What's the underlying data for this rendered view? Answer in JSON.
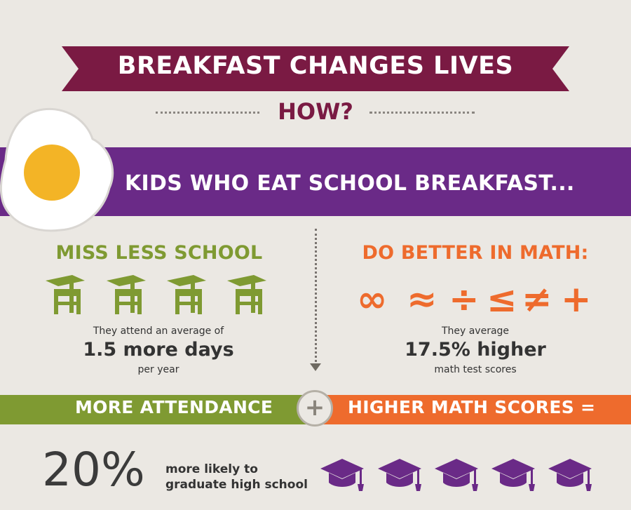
{
  "header": {
    "title": "BREAKFAST CHANGES LIVES",
    "subtitle": "HOW?"
  },
  "banner": {
    "text": "KIDS WHO EAT SCHOOL BREAKFAST..."
  },
  "left": {
    "title": "MISS LESS SCHOOL",
    "line1": "They attend an average of",
    "highlight": "1.5 more days",
    "line2": "per year",
    "icon_name": "school-desk-icon",
    "icon_count": 4
  },
  "right": {
    "title": "DO BETTER IN MATH:",
    "symbols": [
      "∞",
      "≈",
      "÷",
      "≤",
      "≠",
      "+"
    ],
    "line1": "They average",
    "highlight": "17.5% higher",
    "line2": "math test scores"
  },
  "equation": {
    "left": "MORE ATTENDANCE",
    "operator": "+",
    "right": "HIGHER MATH SCORES ="
  },
  "result": {
    "percent": "20%",
    "line1": "more likely to",
    "line2": "graduate high school",
    "icon_name": "graduation-cap-icon",
    "icon_count": 5
  },
  "colors": {
    "background": "#ebe8e3",
    "ribbon": "#7a1a43",
    "purple": "#6a2a87",
    "green": "#7f9a32",
    "orange": "#ee6b2d"
  }
}
